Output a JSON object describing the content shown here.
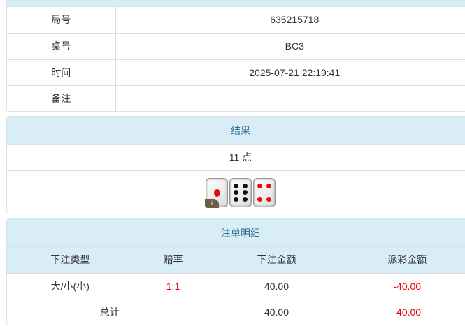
{
  "info": {
    "rows": [
      {
        "label": "局号",
        "value": "635215718"
      },
      {
        "label": "桌号",
        "value": "BC3"
      },
      {
        "label": "时间",
        "value": "2025-07-21 22:19:41"
      },
      {
        "label": "备注",
        "value": ""
      }
    ]
  },
  "result": {
    "title": "结果",
    "points": "11 点",
    "dice": [
      1,
      6,
      4
    ],
    "badge": "i"
  },
  "bets": {
    "title": "注单明细",
    "headers": [
      "下注类型",
      "赔率",
      "下注金额",
      "派彩金额"
    ],
    "rows": [
      {
        "type": "大/小(小)",
        "odds": "1:1",
        "amount": "40.00",
        "payout": "-40.00"
      }
    ],
    "total": {
      "label": "总计",
      "amount": "40.00",
      "payout": "-40.00"
    }
  },
  "colors": {
    "header_bg": "#d9edf7",
    "header_text": "#31708f",
    "negative": "#e00000"
  }
}
